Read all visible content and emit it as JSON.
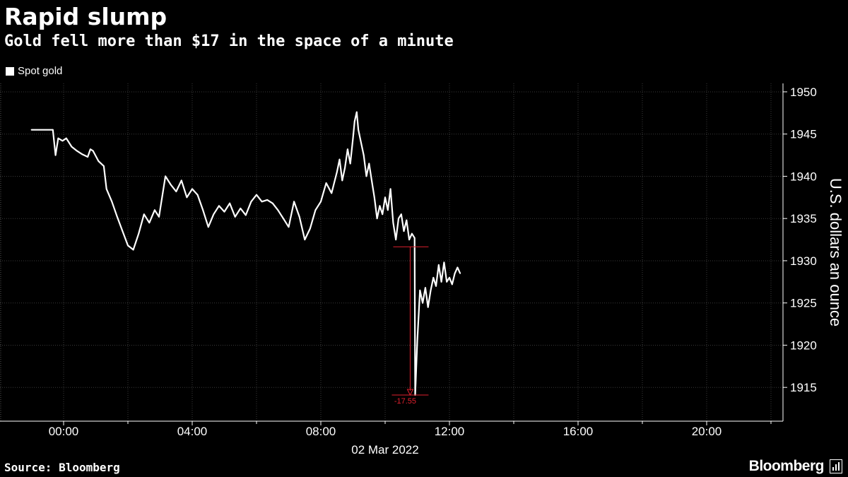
{
  "header": {
    "title": "Rapid slump",
    "subtitle": "Gold fell more than $17 in the space of a minute"
  },
  "footer": {
    "source": "Source: Bloomberg",
    "brand": "Bloomberg"
  },
  "colors": {
    "background": "#000000",
    "series": "#ffffff",
    "annotation": "#e0202e",
    "grid": "#3a3a3a"
  },
  "chart_data": {
    "type": "line",
    "title": "Rapid slump",
    "subtitle": "Gold fell more than $17 in the space of a minute",
    "series": [
      {
        "name": "Spot gold",
        "points": [
          [
            "23:00",
            1945.5
          ],
          [
            "23:40",
            1945.5
          ],
          [
            "23:45",
            1942.5
          ],
          [
            "23:50",
            1944.5
          ],
          [
            "23:58",
            1944.2
          ],
          [
            "00:05",
            1944.5
          ],
          [
            "00:15",
            1943.5
          ],
          [
            "00:25",
            1943.0
          ],
          [
            "00:35",
            1942.6
          ],
          [
            "00:45",
            1942.3
          ],
          [
            "00:50",
            1943.2
          ],
          [
            "00:55",
            1943.0
          ],
          [
            "01:05",
            1941.8
          ],
          [
            "01:15",
            1941.2
          ],
          [
            "01:20",
            1938.5
          ],
          [
            "01:30",
            1937.0
          ],
          [
            "01:40",
            1935.2
          ],
          [
            "01:50",
            1933.5
          ],
          [
            "02:00",
            1931.8
          ],
          [
            "02:10",
            1931.3
          ],
          [
            "02:20",
            1933.2
          ],
          [
            "02:30",
            1935.5
          ],
          [
            "02:40",
            1934.5
          ],
          [
            "02:50",
            1936.0
          ],
          [
            "02:58",
            1935.2
          ],
          [
            "03:05",
            1938.0
          ],
          [
            "03:10",
            1940.0
          ],
          [
            "03:20",
            1939.0
          ],
          [
            "03:30",
            1938.2
          ],
          [
            "03:40",
            1939.5
          ],
          [
            "03:50",
            1937.5
          ],
          [
            "04:00",
            1938.5
          ],
          [
            "04:10",
            1937.8
          ],
          [
            "04:20",
            1936.0
          ],
          [
            "04:30",
            1934.0
          ],
          [
            "04:40",
            1935.5
          ],
          [
            "04:50",
            1936.5
          ],
          [
            "05:00",
            1935.8
          ],
          [
            "05:10",
            1936.8
          ],
          [
            "05:20",
            1935.2
          ],
          [
            "05:30",
            1936.2
          ],
          [
            "05:40",
            1935.4
          ],
          [
            "05:50",
            1937.0
          ],
          [
            "06:00",
            1937.8
          ],
          [
            "06:10",
            1937.0
          ],
          [
            "06:20",
            1937.2
          ],
          [
            "06:30",
            1936.8
          ],
          [
            "06:40",
            1936.0
          ],
          [
            "06:50",
            1935.0
          ],
          [
            "07:00",
            1934.0
          ],
          [
            "07:05",
            1935.5
          ],
          [
            "07:10",
            1937.0
          ],
          [
            "07:20",
            1935.2
          ],
          [
            "07:30",
            1932.5
          ],
          [
            "07:40",
            1933.8
          ],
          [
            "07:50",
            1936.0
          ],
          [
            "08:00",
            1937.0
          ],
          [
            "08:10",
            1939.2
          ],
          [
            "08:20",
            1938.0
          ],
          [
            "08:30",
            1940.5
          ],
          [
            "08:35",
            1942.0
          ],
          [
            "08:40",
            1939.5
          ],
          [
            "08:45",
            1941.0
          ],
          [
            "08:50",
            1943.2
          ],
          [
            "08:55",
            1941.5
          ],
          [
            "09:00",
            1944.5
          ],
          [
            "09:03",
            1946.5
          ],
          [
            "09:07",
            1947.6
          ],
          [
            "09:10",
            1945.5
          ],
          [
            "09:15",
            1944.0
          ],
          [
            "09:20",
            1942.5
          ],
          [
            "09:25",
            1940.0
          ],
          [
            "09:30",
            1941.5
          ],
          [
            "09:35",
            1939.5
          ],
          [
            "09:40",
            1937.5
          ],
          [
            "09:45",
            1935.0
          ],
          [
            "09:50",
            1936.5
          ],
          [
            "09:55",
            1935.5
          ],
          [
            "10:00",
            1937.5
          ],
          [
            "10:05",
            1936.0
          ],
          [
            "10:10",
            1938.5
          ],
          [
            "10:15",
            1934.5
          ],
          [
            "10:20",
            1932.5
          ],
          [
            "10:25",
            1935.0
          ],
          [
            "10:30",
            1935.5
          ],
          [
            "10:35",
            1933.5
          ],
          [
            "10:40",
            1934.8
          ],
          [
            "10:45",
            1932.5
          ],
          [
            "10:50",
            1933.2
          ],
          [
            "10:55",
            1932.7
          ],
          [
            "10:56",
            1914.1
          ],
          [
            "10:57",
            1915.5
          ],
          [
            "11:00",
            1920.5
          ],
          [
            "11:05",
            1926.5
          ],
          [
            "11:10",
            1925.0
          ],
          [
            "11:15",
            1926.8
          ],
          [
            "11:20",
            1924.5
          ],
          [
            "11:25",
            1926.5
          ],
          [
            "11:30",
            1928.0
          ],
          [
            "11:35",
            1927.0
          ],
          [
            "11:40",
            1929.5
          ],
          [
            "11:45",
            1927.5
          ],
          [
            "11:50",
            1929.8
          ],
          [
            "11:55",
            1927.5
          ],
          [
            "12:00",
            1928.0
          ],
          [
            "12:05",
            1927.2
          ],
          [
            "12:10",
            1928.5
          ],
          [
            "12:15",
            1929.2
          ],
          [
            "12:20",
            1928.5
          ]
        ]
      }
    ],
    "x_axis": {
      "type": "time",
      "date_label": "02 Mar 2022",
      "range": [
        "22:48",
        "23:38+1d"
      ],
      "tick_labels": [
        "00:00",
        "04:00",
        "08:00",
        "12:00",
        "16:00",
        "20:00"
      ],
      "tick_hours": [
        0,
        4,
        8,
        12,
        16,
        20
      ],
      "minor_tick_hours": [
        2,
        6,
        10,
        14,
        18,
        22
      ]
    },
    "y_axis": {
      "label": "U.S. dollars an ounce",
      "position": "right",
      "ylim": [
        1911,
        1951
      ],
      "ticks": [
        1915,
        1920,
        1925,
        1930,
        1935,
        1940,
        1945,
        1950
      ]
    },
    "grid": true,
    "legend": {
      "position": "top-left",
      "entries": [
        "Spot gold"
      ]
    },
    "annotation": {
      "label": "-17.55",
      "from_value": 1931.65,
      "to_value": 1914.1,
      "time": "10:52"
    }
  }
}
